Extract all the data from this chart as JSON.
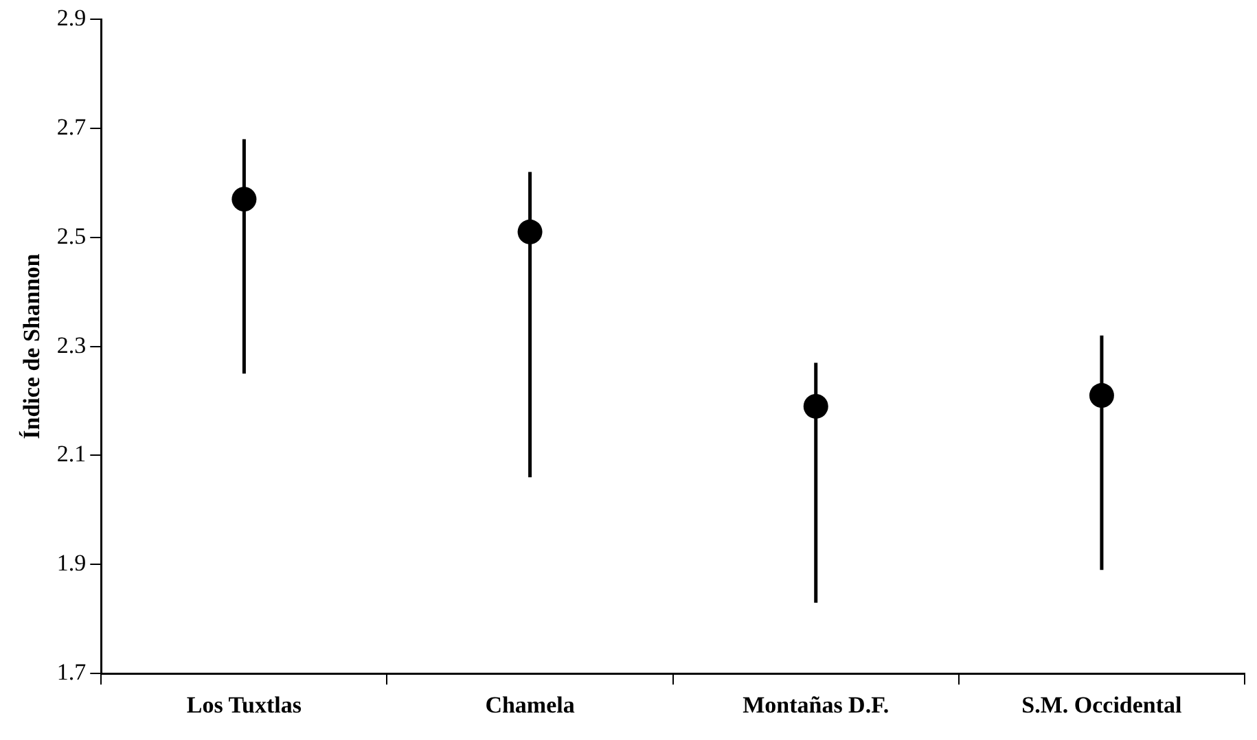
{
  "chart_data": {
    "type": "scatter",
    "ylabel": "Índice de Shannon",
    "categories": [
      "Los Tuxtlas",
      "Chamela",
      "Montañas D.F.",
      "S.M. Occidental"
    ],
    "values": [
      2.57,
      2.51,
      2.19,
      2.21
    ],
    "errors": [
      [
        2.25,
        2.68
      ],
      [
        2.06,
        2.62
      ],
      [
        1.83,
        2.27
      ],
      [
        1.89,
        2.32
      ]
    ],
    "color": "#000000",
    "marker": "circle",
    "ylim": [
      1.7,
      2.9
    ],
    "yticks": [
      1.7,
      1.9,
      2.1,
      2.3,
      2.5,
      2.7,
      2.9
    ],
    "grid": false,
    "legend": false
  }
}
